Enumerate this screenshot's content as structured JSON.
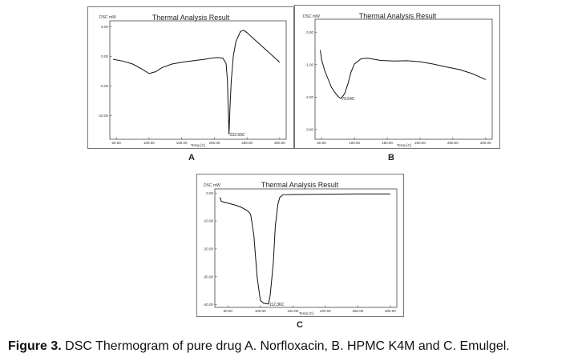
{
  "chart_data": [
    {
      "type": "line",
      "panel": "A",
      "title": "Thermal Analysis Result",
      "ylabel": "DSC mW",
      "xlabel": "Temp [C]",
      "xlim": [
        40,
        310
      ],
      "ylim": [
        -14,
        6
      ],
      "xticks": [
        50,
        100,
        150,
        200,
        250,
        300
      ],
      "xtick_labels": [
        "50.00",
        "100.00",
        "150.00",
        "200.00",
        "250.00",
        "300.00"
      ],
      "yticks": [
        5,
        0,
        -5,
        -10
      ],
      "ytick_labels": [
        "5.00",
        "0.00",
        "-5.00",
        "-10.00"
      ],
      "annotation": {
        "label": "222.50C",
        "x": 222.5,
        "y": -13.2
      },
      "series": [
        {
          "name": "Norfloxacin",
          "x": [
            45,
            60,
            75,
            90,
            100,
            110,
            120,
            135,
            150,
            170,
            185,
            195,
            205,
            213,
            218,
            220,
            222.5,
            224,
            226,
            229,
            233,
            240,
            245,
            250,
            260,
            270,
            280,
            290,
            300
          ],
          "y": [
            -0.5,
            -0.8,
            -1.3,
            -2.2,
            -2.9,
            -2.6,
            -1.9,
            -1.3,
            -1.0,
            -0.7,
            -0.5,
            -0.3,
            -0.2,
            -0.3,
            -1.2,
            -4.0,
            -13.2,
            -8.5,
            -4.0,
            0.0,
            2.5,
            4.2,
            4.4,
            4.0,
            3.0,
            2.0,
            1.0,
            0.0,
            -1.0
          ]
        }
      ]
    },
    {
      "type": "line",
      "panel": "B",
      "title": "Thermal Analysis Result",
      "ylabel": "DSC mW",
      "xlabel": "Temp [C]",
      "xlim": [
        40,
        310
      ],
      "ylim": [
        -3.3,
        0.4
      ],
      "xticks": [
        50,
        100,
        150,
        200,
        250,
        300
      ],
      "xtick_labels": [
        "50.00",
        "100.00",
        "150.00",
        "200.00",
        "250.00",
        "300.00"
      ],
      "yticks": [
        0,
        -1,
        -2,
        -3
      ],
      "ytick_labels": [
        "0.00",
        "-1.00",
        "-2.00",
        "-3.00"
      ],
      "annotation": {
        "label": "79.54C",
        "x": 79.54,
        "y": -2.04
      },
      "series": [
        {
          "name": "HPMC K4M",
          "x": [
            48,
            50,
            55,
            60,
            65,
            70,
            75,
            79.54,
            85,
            90,
            95,
            100,
            110,
            120,
            140,
            160,
            180,
            200,
            220,
            240,
            260,
            280,
            300
          ],
          "y": [
            -0.55,
            -0.85,
            -1.2,
            -1.45,
            -1.7,
            -1.85,
            -1.98,
            -2.04,
            -1.9,
            -1.6,
            -1.22,
            -0.98,
            -0.82,
            -0.8,
            -0.87,
            -0.89,
            -0.88,
            -0.91,
            -0.98,
            -1.07,
            -1.15,
            -1.28,
            -1.46
          ]
        }
      ]
    },
    {
      "type": "line",
      "panel": "C",
      "title": "Thermal Analysis Result",
      "ylabel": "DSC mW",
      "xlabel": "Temp [C]",
      "xlim": [
        30,
        310
      ],
      "ylim": [
        -41,
        1.5
      ],
      "xticks": [
        50,
        100,
        150,
        200,
        250,
        300
      ],
      "xtick_labels": [
        "50.00",
        "100.00",
        "150.00",
        "200.00",
        "250.00",
        "300.00"
      ],
      "yticks": [
        0,
        -10,
        -20,
        -30,
        -40
      ],
      "ytick_labels": [
        "0.00",
        "-10.00",
        "-20.00",
        "-30.00",
        "-40.00"
      ],
      "annotation": {
        "label": "112.36C",
        "x": 112.36,
        "y": -39.8
      },
      "series": [
        {
          "name": "Emulgel",
          "x": [
            38,
            40,
            50,
            60,
            70,
            80,
            85,
            90,
            95,
            100,
            105,
            110,
            112.36,
            115,
            120,
            123,
            127,
            130,
            135,
            150,
            200,
            250,
            300
          ],
          "y": [
            -1.5,
            -3.0,
            -3.6,
            -4.2,
            -5.0,
            -6.3,
            -7.5,
            -15,
            -30,
            -38.5,
            -39.5,
            -39.7,
            -39.8,
            -37,
            -25,
            -12,
            -4,
            -1.5,
            -0.6,
            -0.5,
            -0.4,
            -0.3,
            -0.3
          ]
        }
      ]
    }
  ],
  "panel_labels": [
    "A",
    "B",
    "C"
  ],
  "caption": {
    "bold": "Figure 3.",
    "text": " DSC Thermogram of pure drug A. Norfloxacin, B. HPMC K4M and C. Emulgel."
  }
}
